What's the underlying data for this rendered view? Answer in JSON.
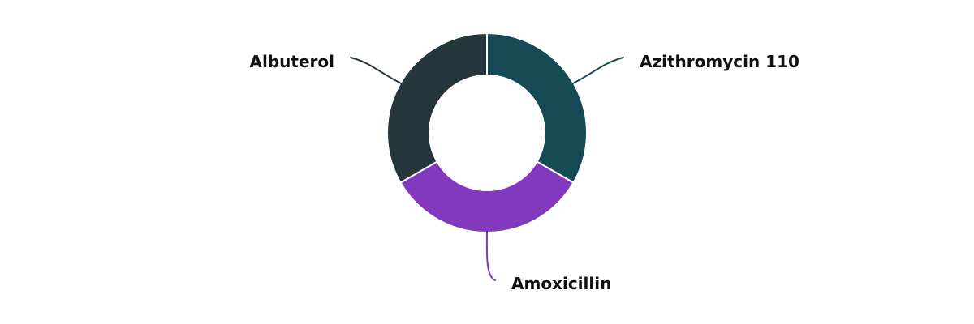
{
  "chart_data": {
    "type": "pie",
    "variant": "donut",
    "title": "",
    "legend": "none",
    "slices": [
      {
        "label": "Azithromycin 110",
        "value": 1,
        "color": "#164b55"
      },
      {
        "label": "Amoxicillin",
        "value": 1,
        "color": "#8339be"
      },
      {
        "label": "Albuterol",
        "value": 1,
        "color": "#25373d"
      }
    ]
  }
}
